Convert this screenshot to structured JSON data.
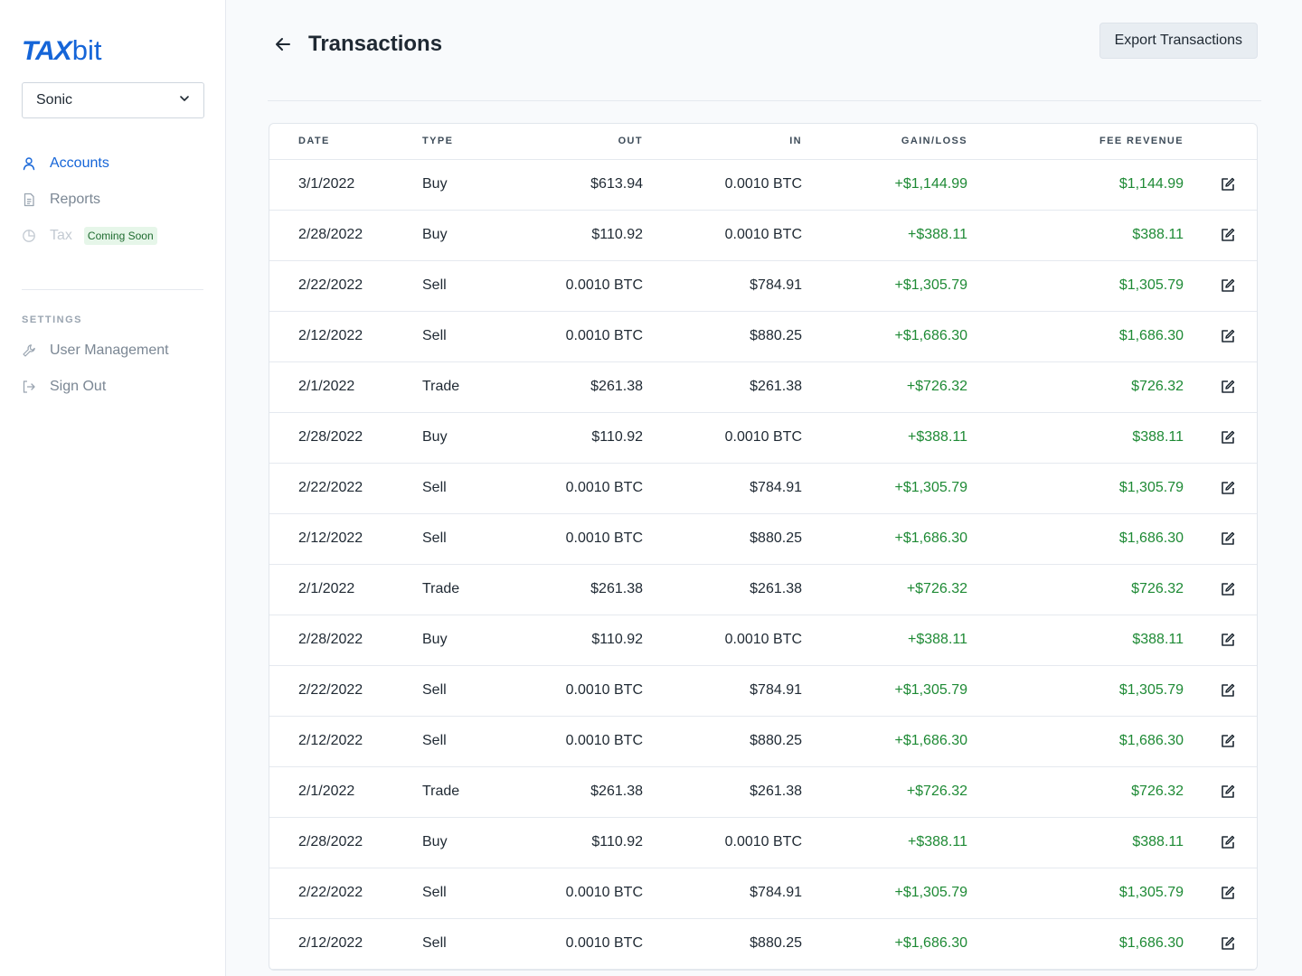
{
  "logo": {
    "part1": "TAX",
    "part2": "bit"
  },
  "account_select": {
    "value": "Sonic"
  },
  "nav": {
    "accounts": "Accounts",
    "reports": "Reports",
    "tax": "Tax",
    "tax_badge": "Coming Soon"
  },
  "settings": {
    "label": "SETTINGS",
    "user_management": "User Management",
    "sign_out": "Sign Out"
  },
  "header": {
    "title": "Transactions",
    "export_label": "Export Transactions"
  },
  "table": {
    "columns": [
      "DATE",
      "TYPE",
      "OUT",
      "IN",
      "GAIN/LOSS",
      "FEE REVENUE"
    ],
    "rows": [
      {
        "date": "3/1/2022",
        "type": "Buy",
        "out": "$613.94",
        "in": "0.0010 BTC",
        "gain": "+$1,144.99",
        "fee": "$1,144.99"
      },
      {
        "date": "2/28/2022",
        "type": "Buy",
        "out": "$110.92",
        "in": "0.0010 BTC",
        "gain": "+$388.11",
        "fee": "$388.11"
      },
      {
        "date": "2/22/2022",
        "type": "Sell",
        "out": "0.0010 BTC",
        "in": "$784.91",
        "gain": "+$1,305.79",
        "fee": "$1,305.79"
      },
      {
        "date": "2/12/2022",
        "type": "Sell",
        "out": "0.0010 BTC",
        "in": "$880.25",
        "gain": "+$1,686.30",
        "fee": "$1,686.30"
      },
      {
        "date": "2/1/2022",
        "type": "Trade",
        "out": "$261.38",
        "in": "$261.38",
        "gain": "+$726.32",
        "fee": "$726.32"
      },
      {
        "date": "2/28/2022",
        "type": "Buy",
        "out": "$110.92",
        "in": "0.0010 BTC",
        "gain": "+$388.11",
        "fee": "$388.11"
      },
      {
        "date": "2/22/2022",
        "type": "Sell",
        "out": "0.0010 BTC",
        "in": "$784.91",
        "gain": "+$1,305.79",
        "fee": "$1,305.79"
      },
      {
        "date": "2/12/2022",
        "type": "Sell",
        "out": "0.0010 BTC",
        "in": "$880.25",
        "gain": "+$1,686.30",
        "fee": "$1,686.30"
      },
      {
        "date": "2/1/2022",
        "type": "Trade",
        "out": "$261.38",
        "in": "$261.38",
        "gain": "+$726.32",
        "fee": "$726.32"
      },
      {
        "date": "2/28/2022",
        "type": "Buy",
        "out": "$110.92",
        "in": "0.0010 BTC",
        "gain": "+$388.11",
        "fee": "$388.11"
      },
      {
        "date": "2/22/2022",
        "type": "Sell",
        "out": "0.0010 BTC",
        "in": "$784.91",
        "gain": "+$1,305.79",
        "fee": "$1,305.79"
      },
      {
        "date": "2/12/2022",
        "type": "Sell",
        "out": "0.0010 BTC",
        "in": "$880.25",
        "gain": "+$1,686.30",
        "fee": "$1,686.30"
      },
      {
        "date": "2/1/2022",
        "type": "Trade",
        "out": "$261.38",
        "in": "$261.38",
        "gain": "+$726.32",
        "fee": "$726.32"
      },
      {
        "date": "2/28/2022",
        "type": "Buy",
        "out": "$110.92",
        "in": "0.0010 BTC",
        "gain": "+$388.11",
        "fee": "$388.11"
      },
      {
        "date": "2/22/2022",
        "type": "Sell",
        "out": "0.0010 BTC",
        "in": "$784.91",
        "gain": "+$1,305.79",
        "fee": "$1,305.79"
      },
      {
        "date": "2/12/2022",
        "type": "Sell",
        "out": "0.0010 BTC",
        "in": "$880.25",
        "gain": "+$1,686.30",
        "fee": "$1,686.30"
      }
    ]
  },
  "colors": {
    "accent": "#1565d8",
    "positive": "#1e8a35",
    "badge_bg": "#e6f6e9"
  },
  "icons": {
    "accounts": "user-icon",
    "reports": "document-icon",
    "tax": "pie-chart-icon",
    "user_management": "wrench-icon",
    "sign_out": "sign-out-icon",
    "back": "arrow-left-icon",
    "edit": "edit-icon",
    "select": "chevron-down-icon"
  }
}
